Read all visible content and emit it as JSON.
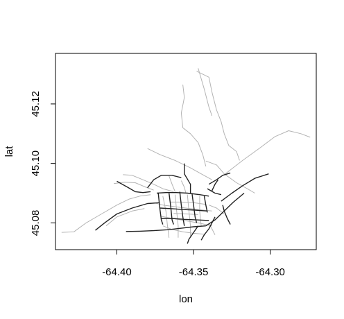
{
  "chart_data": {
    "type": "line",
    "xlabel": "lon",
    "ylabel": "lat",
    "xlim": [
      -64.44,
      -64.27
    ],
    "ylim": [
      45.071,
      45.137
    ],
    "x_ticks": [
      -64.4,
      -64.35,
      -64.3
    ],
    "x_tick_labels": [
      "-64.40",
      "-64.35",
      "-64.30"
    ],
    "y_ticks": [
      45.08,
      45.1,
      45.12
    ],
    "y_tick_labels": [
      "45.08",
      "45.10",
      "45.12"
    ],
    "grid": false,
    "colors": {
      "major_roads": "#222222",
      "minor_roads": "#b3b3b3",
      "frame": "#000000"
    },
    "series": [
      {
        "style": "minor",
        "lines": [
          [
            [
              -64.436,
              45.0768
            ],
            [
              -64.428,
              45.077
            ],
            [
              -64.42,
              45.08
            ],
            [
              -64.41,
              45.083
            ],
            [
              -64.4,
              45.086
            ],
            [
              -64.392,
              45.088
            ],
            [
              -64.385,
              45.089
            ],
            [
              -64.378,
              45.0895
            ]
          ],
          [
            [
              -64.407,
              45.079
            ],
            [
              -64.4,
              45.082
            ],
            [
              -64.39,
              45.084
            ],
            [
              -64.382,
              45.0848
            ]
          ],
          [
            [
              -64.38,
              45.105
            ],
            [
              -64.372,
              45.103
            ],
            [
              -64.362,
              45.101
            ],
            [
              -64.352,
              45.0985
            ],
            [
              -64.345,
              45.0965
            ],
            [
              -64.338,
              45.0945
            ]
          ],
          [
            [
              -64.357,
              45.1265
            ],
            [
              -64.356,
              45.1222
            ],
            [
              -64.358,
              45.117
            ],
            [
              -64.357,
              45.112
            ],
            [
              -64.352,
              45.11
            ],
            [
              -64.347,
              45.107
            ],
            [
              -64.344,
              45.103
            ],
            [
              -64.342,
              45.099
            ]
          ],
          [
            [
              -64.348,
              45.131
            ],
            [
              -64.34,
              45.129
            ],
            [
              -64.338,
              45.124
            ],
            [
              -64.335,
              45.118
            ],
            [
              -64.332,
              45.114
            ],
            [
              -64.33,
              45.11
            ],
            [
              -64.327,
              45.106
            ],
            [
              -64.322,
              45.104
            ],
            [
              -64.32,
              45.101
            ]
          ],
          [
            [
              -64.347,
              45.132
            ],
            [
              -64.343,
              45.125
            ],
            [
              -64.34,
              45.119
            ],
            [
              -64.338,
              45.116
            ]
          ],
          [
            [
              -64.342,
              45.1008
            ],
            [
              -64.335,
              45.0995
            ],
            [
              -64.33,
              45.0965
            ],
            [
              -64.322,
              45.0935
            ],
            [
              -64.315,
              45.0915
            ],
            [
              -64.31,
              45.09
            ]
          ],
          [
            [
              -64.33,
              45.0962
            ],
            [
              -64.318,
              45.101
            ],
            [
              -64.306,
              45.1055
            ],
            [
              -64.297,
              45.109
            ],
            [
              -64.288,
              45.111
            ],
            [
              -64.28,
              45.11
            ],
            [
              -64.274,
              45.1088
            ]
          ],
          [
            [
              -64.396,
              45.0962
            ],
            [
              -64.39,
              45.096
            ],
            [
              -64.383,
              45.0945
            ],
            [
              -64.376,
              45.093
            ],
            [
              -64.37,
              45.0915
            ],
            [
              -64.363,
              45.0905
            ]
          ],
          [
            [
              -64.402,
              45.0932
            ],
            [
              -64.395,
              45.0937
            ],
            [
              -64.388,
              45.0935
            ],
            [
              -64.381,
              45.092
            ],
            [
              -64.376,
              45.091
            ]
          ],
          [
            [
              -64.376,
              45.0868
            ],
            [
              -64.37,
              45.086
            ],
            [
              -64.363,
              45.0855
            ],
            [
              -64.355,
              45.085
            ],
            [
              -64.347,
              45.0845
            ],
            [
              -64.338,
              45.084
            ]
          ],
          [
            [
              -64.371,
              45.0822
            ],
            [
              -64.364,
              45.0815
            ],
            [
              -64.356,
              45.0808
            ],
            [
              -64.347,
              45.08
            ],
            [
              -64.338,
              45.079
            ]
          ],
          [
            [
              -64.37,
              45.079
            ],
            [
              -64.364,
              45.0778
            ],
            [
              -64.357,
              45.077
            ],
            [
              -64.35,
              45.0765
            ],
            [
              -64.343,
              45.0762
            ]
          ],
          [
            [
              -64.37,
              45.089
            ],
            [
              -64.368,
              45.084
            ],
            [
              -64.367,
              45.079
            ],
            [
              -64.366,
              45.075
            ]
          ],
          [
            [
              -64.362,
              45.0895
            ],
            [
              -64.361,
              45.084
            ],
            [
              -64.36,
              45.079
            ],
            [
              -64.36,
              45.075
            ]
          ],
          [
            [
              -64.354,
              45.0895
            ],
            [
              -64.353,
              45.084
            ],
            [
              -64.352,
              45.079
            ],
            [
              -64.352,
              45.0755
            ]
          ],
          [
            [
              -64.346,
              45.089
            ],
            [
              -64.346,
              45.084
            ],
            [
              -64.345,
              45.079
            ]
          ],
          [
            [
              -64.366,
              45.0958
            ],
            [
              -64.364,
              45.093
            ],
            [
              -64.362,
              45.0905
            ]
          ],
          [
            [
              -64.358,
              45.0942
            ],
            [
              -64.356,
              45.092
            ],
            [
              -64.355,
              45.09
            ]
          ],
          [
            [
              -64.34,
              45.086
            ],
            [
              -64.335,
              45.085
            ],
            [
              -64.33,
              45.083
            ]
          ],
          [
            [
              -64.365,
              45.087
            ],
            [
              -64.358,
              45.087
            ],
            [
              -64.35,
              45.0868
            ],
            [
              -64.342,
              45.0862
            ]
          ],
          [
            [
              -64.363,
              45.0832
            ],
            [
              -64.355,
              45.083
            ],
            [
              -64.347,
              45.0828
            ]
          ],
          [
            [
              -64.34,
              45.08
            ],
            [
              -64.338,
              45.078
            ],
            [
              -64.336,
              45.076
            ]
          ]
        ]
      },
      {
        "style": "major",
        "lines": [
          [
            [
              -64.414,
              45.0775
            ],
            [
              -64.408,
              45.08
            ],
            [
              -64.4,
              45.083
            ],
            [
              -64.39,
              45.085
            ],
            [
              -64.38,
              45.0865
            ],
            [
              -64.372,
              45.0868
            ]
          ],
          [
            [
              -64.4,
              45.094
            ],
            [
              -64.393,
              45.092
            ],
            [
              -64.388,
              45.0905
            ],
            [
              -64.383,
              45.0902
            ],
            [
              -64.378,
              45.0905
            ]
          ],
          [
            [
              -64.38,
              45.0918
            ],
            [
              -64.376,
              45.0945
            ],
            [
              -64.371,
              45.096
            ],
            [
              -64.364,
              45.096
            ],
            [
              -64.358,
              45.0952
            ]
          ],
          [
            [
              -64.356,
              45.1
            ],
            [
              -64.356,
              45.0965
            ],
            [
              -64.352,
              45.093
            ],
            [
              -64.352,
              45.09
            ]
          ],
          [
            [
              -64.34,
              45.093
            ],
            [
              -64.335,
              45.0945
            ],
            [
              -64.331,
              45.096
            ],
            [
              -64.326,
              45.0968
            ]
          ],
          [
            [
              -64.341,
              45.0915
            ],
            [
              -64.336,
              45.09
            ],
            [
              -64.332,
              45.0895
            ]
          ],
          [
            [
              -64.332,
              45.0873
            ],
            [
              -64.325,
              45.09
            ],
            [
              -64.318,
              45.0925
            ],
            [
              -64.31,
              45.095
            ],
            [
              -64.301,
              45.0965
            ]
          ],
          [
            [
              -64.394,
              45.0771
            ],
            [
              -64.385,
              45.0772
            ],
            [
              -64.376,
              45.0774
            ],
            [
              -64.367,
              45.0777
            ],
            [
              -64.358,
              45.0782
            ],
            [
              -64.35,
              45.0787
            ],
            [
              -64.342,
              45.079
            ]
          ],
          [
            [
              -64.342,
              45.079
            ],
            [
              -64.336,
              45.081
            ],
            [
              -64.33,
              45.084
            ],
            [
              -64.324,
              45.087
            ],
            [
              -64.317,
              45.09
            ]
          ],
          [
            [
              -64.373,
              45.09
            ],
            [
              -64.372,
              45.085
            ],
            [
              -64.371,
              45.081
            ],
            [
              -64.37,
              45.0795
            ]
          ],
          [
            [
              -64.366,
              45.09
            ],
            [
              -64.365,
              45.086
            ],
            [
              -64.364,
              45.081
            ],
            [
              -64.363,
              45.0795
            ]
          ],
          [
            [
              -64.359,
              45.0905
            ],
            [
              -64.358,
              45.086
            ],
            [
              -64.357,
              45.082
            ],
            [
              -64.356,
              45.079
            ]
          ],
          [
            [
              -64.351,
              45.09
            ],
            [
              -64.35,
              45.086
            ],
            [
              -64.349,
              45.082
            ],
            [
              -64.348,
              45.08
            ]
          ],
          [
            [
              -64.343,
              45.089
            ],
            [
              -64.342,
              45.086
            ],
            [
              -64.341,
              45.0835
            ]
          ],
          [
            [
              -64.374,
              45.09
            ],
            [
              -64.368,
              45.0902
            ],
            [
              -64.361,
              45.0902
            ],
            [
              -64.354,
              45.09
            ],
            [
              -64.346,
              45.0895
            ],
            [
              -64.34,
              45.089
            ]
          ],
          [
            [
              -64.372,
              45.085
            ],
            [
              -64.365,
              45.0848
            ],
            [
              -64.357,
              45.0845
            ],
            [
              -64.349,
              45.0843
            ],
            [
              -64.341,
              45.084
            ]
          ],
          [
            [
              -64.371,
              45.0815
            ],
            [
              -64.364,
              45.0815
            ],
            [
              -64.356,
              45.0812
            ],
            [
              -64.348,
              45.081
            ],
            [
              -64.34,
              45.0808
            ]
          ],
          [
            [
              -64.347,
              45.079
            ],
            [
              -64.349,
              45.0775
            ],
            [
              -64.351,
              45.076
            ],
            [
              -64.353,
              45.0745
            ],
            [
              -64.354,
              45.073
            ]
          ],
          [
            [
              -64.336,
              45.082
            ],
            [
              -64.338,
              45.08
            ],
            [
              -64.34,
              45.078
            ],
            [
              -64.343,
              45.076
            ],
            [
              -64.345,
              45.0742
            ]
          ],
          [
            [
              -64.331,
              45.086
            ],
            [
              -64.33,
              45.084
            ],
            [
              -64.328,
              45.0815
            ],
            [
              -64.326,
              45.0795
            ]
          ],
          [
            [
              -64.338,
              45.0908
            ],
            [
              -64.336,
              45.093
            ],
            [
              -64.334,
              45.0945
            ]
          ]
        ]
      }
    ]
  }
}
